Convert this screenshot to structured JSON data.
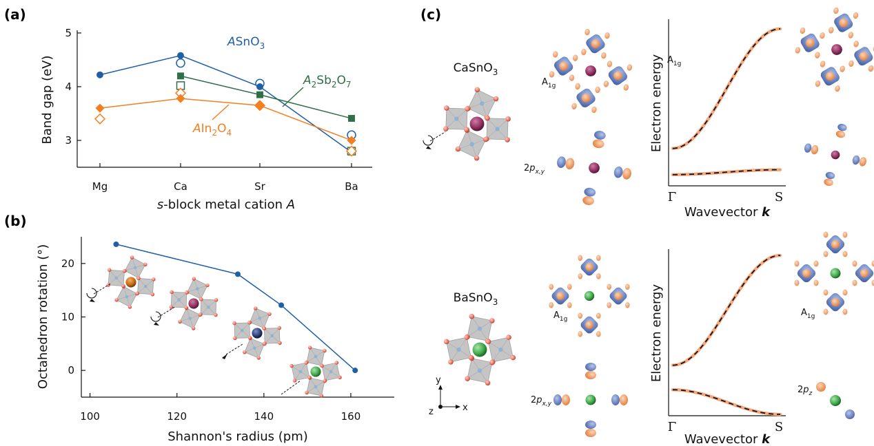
{
  "colors": {
    "blue": "#1f5fa6",
    "green": "#2e6f45",
    "orange": "#f47f20",
    "orb_blue": "#6f8ccc",
    "orb_orange": "#f0a06a",
    "oct_gray": "#b5b5b5",
    "o_atom": "#f07f6f",
    "ca_atom": "#8c2f5d",
    "ba_atom": "#3ea64a",
    "mg_atom": "#c4680e",
    "sr_atom": "#2c3c73",
    "band_orange": "#f6a77c"
  },
  "panels": {
    "a": "(a)",
    "b": "(b)",
    "c": "(c)"
  },
  "chart_data": [
    {
      "type": "line",
      "panel": "a",
      "categories": [
        "Mg",
        "Ca",
        "Sr",
        "Ba"
      ],
      "xlabel_s": "s",
      "xlabel_rest": "-block metal cation ",
      "xlabel_A": "A",
      "ylabel": "Band gap (eV)",
      "ylim": [
        2.5,
        5.05
      ],
      "yticks": [
        3,
        4,
        5
      ],
      "series": [
        {
          "name": "ASnO3",
          "label_parts": [
            "A",
            "SnO",
            "3"
          ],
          "color_key": "blue",
          "marker": "circle",
          "values": [
            4.22,
            4.58,
            4.0,
            2.78
          ],
          "open_values": [
            null,
            4.44,
            4.06,
            3.1
          ]
        },
        {
          "name": "A2Sb2O7",
          "label_parts": [
            "A",
            "2",
            "Sb",
            "2",
            "O",
            "7"
          ],
          "color_key": "green",
          "marker": "square",
          "values": [
            null,
            4.2,
            3.85,
            3.41
          ],
          "open_values": [
            null,
            4.02,
            null,
            2.8
          ]
        },
        {
          "name": "AIn2O4",
          "label_parts": [
            "A",
            "In",
            "2",
            "O",
            "4"
          ],
          "color_key": "orange",
          "marker": "diamond",
          "values": [
            3.6,
            3.78,
            3.65,
            3.0
          ],
          "open_values": [
            3.4,
            3.88,
            3.65,
            2.8
          ]
        }
      ]
    },
    {
      "type": "line",
      "panel": "b",
      "xlabel": "Shannon's radius (pm)",
      "ylabel": "Octahedron rotation (°)",
      "xlim": [
        98,
        170
      ],
      "ylim": [
        -5,
        25
      ],
      "xticks": [
        100,
        120,
        140,
        160
      ],
      "yticks": [
        0,
        10,
        20
      ],
      "series": [
        {
          "color_key": "blue",
          "x": [
            106,
            134,
            144,
            161
          ],
          "y": [
            23.6,
            18.0,
            12.2,
            0.0
          ]
        }
      ]
    },
    {
      "type": "line",
      "panel": "c-top",
      "xlabel_text": "Wavevector ",
      "xlabel_k": "k",
      "ylabel": "Electron energy",
      "xticks": [
        "Γ",
        "S"
      ],
      "bands": [
        {
          "from": 0.22,
          "to": 0.95,
          "shape": "sigmoid"
        },
        {
          "from": 0.06,
          "to": 0.09,
          "shape": "sigmoid"
        }
      ]
    },
    {
      "type": "line",
      "panel": "c-bottom",
      "xlabel_text": "Wavevector ",
      "xlabel_k": "k",
      "ylabel": "Electron energy",
      "xticks": [
        "Γ",
        "S"
      ],
      "bands": [
        {
          "from": 0.3,
          "to": 0.97,
          "shape": "sigmoid"
        },
        {
          "from": 0.15,
          "to": 0.0,
          "shape": "sigmoid"
        }
      ]
    }
  ],
  "panel_c": {
    "compound_top": {
      "base": "CaSnO",
      "sub": "3"
    },
    "compound_bottom": {
      "base": "BaSnO",
      "sub": "3"
    },
    "orbital_labels": {
      "a1g_base": "A",
      "a1g_sub": "1g",
      "p_xy_base": "2",
      "p_xy_p": "p",
      "p_xy_sub": "x,y",
      "p_z_base": "2",
      "p_z_p": "p",
      "p_z_sub": "z"
    },
    "axes_labels": {
      "y": "y",
      "x": "x",
      "z": "z"
    }
  }
}
